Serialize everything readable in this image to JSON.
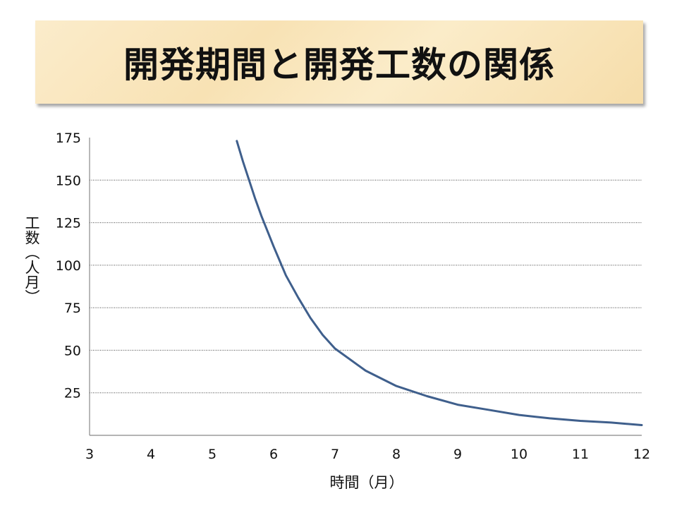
{
  "slide": {
    "title": "開発期間と開発工数の関係"
  },
  "chart_data": {
    "type": "line",
    "title": "開発期間と開発工数の関係",
    "xlabel": "時間（月）",
    "ylabel": "工数（人月）",
    "xlim": [
      3,
      12
    ],
    "ylim": [
      0,
      175
    ],
    "x_ticks": [
      3,
      4,
      5,
      6,
      7,
      8,
      9,
      10,
      11,
      12
    ],
    "y_ticks": [
      25,
      50,
      75,
      100,
      125,
      150,
      175
    ],
    "grid": "horizontal-dotted",
    "series": [
      {
        "color": "#3f5f8c",
        "x": [
          5.4,
          5.5,
          5.6,
          5.7,
          5.8,
          5.9,
          6.0,
          6.2,
          6.4,
          6.6,
          6.8,
          7.0,
          7.5,
          8.0,
          8.5,
          9.0,
          9.5,
          10.0,
          10.5,
          11.0,
          11.5,
          12.0
        ],
        "y": [
          173,
          161,
          150,
          139,
          129,
          120,
          111,
          94,
          81,
          69,
          59,
          51,
          38,
          29,
          23,
          18,
          15,
          12,
          10,
          8.5,
          7.5,
          6
        ]
      }
    ]
  }
}
